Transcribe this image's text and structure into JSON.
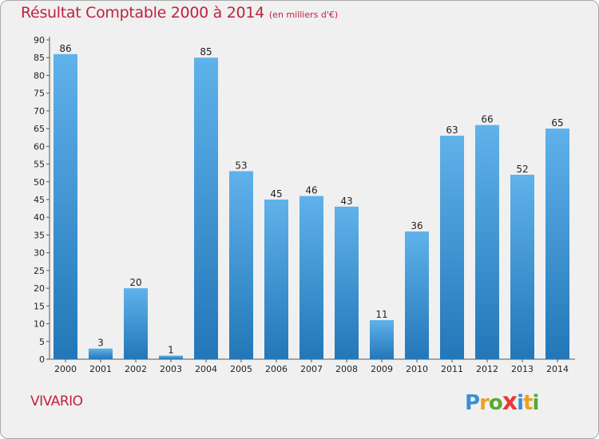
{
  "chart_data": {
    "type": "bar",
    "title": "Résultat Comptable 2000 à 2014",
    "subtitle": "(en milliers d'€)",
    "categories": [
      "2000",
      "2001",
      "2002",
      "2003",
      "2004",
      "2005",
      "2006",
      "2007",
      "2008",
      "2009",
      "2010",
      "2011",
      "2012",
      "2013",
      "2014"
    ],
    "values": [
      86,
      3,
      20,
      1,
      85,
      53,
      45,
      46,
      43,
      11,
      36,
      63,
      66,
      52,
      65
    ],
    "ylim": [
      0,
      90
    ],
    "yticks": [
      0,
      5,
      10,
      15,
      20,
      25,
      30,
      35,
      40,
      45,
      50,
      55,
      60,
      65,
      70,
      75,
      80,
      85,
      90
    ],
    "grid": false,
    "legend": "none",
    "colors": {
      "bar_top": "#5fb2ea",
      "bar_bottom": "#2377b8",
      "title": "#c0223e"
    }
  },
  "place_name": "VIVARIO",
  "logo": {
    "letters": [
      "P",
      "r",
      "o",
      "x",
      "i",
      "t",
      "i"
    ],
    "colors": [
      "#3a8fd6",
      "#f0a020",
      "#5aa832",
      "#e83a30",
      "#3a8fd6",
      "#f0a020",
      "#5aa832"
    ]
  }
}
